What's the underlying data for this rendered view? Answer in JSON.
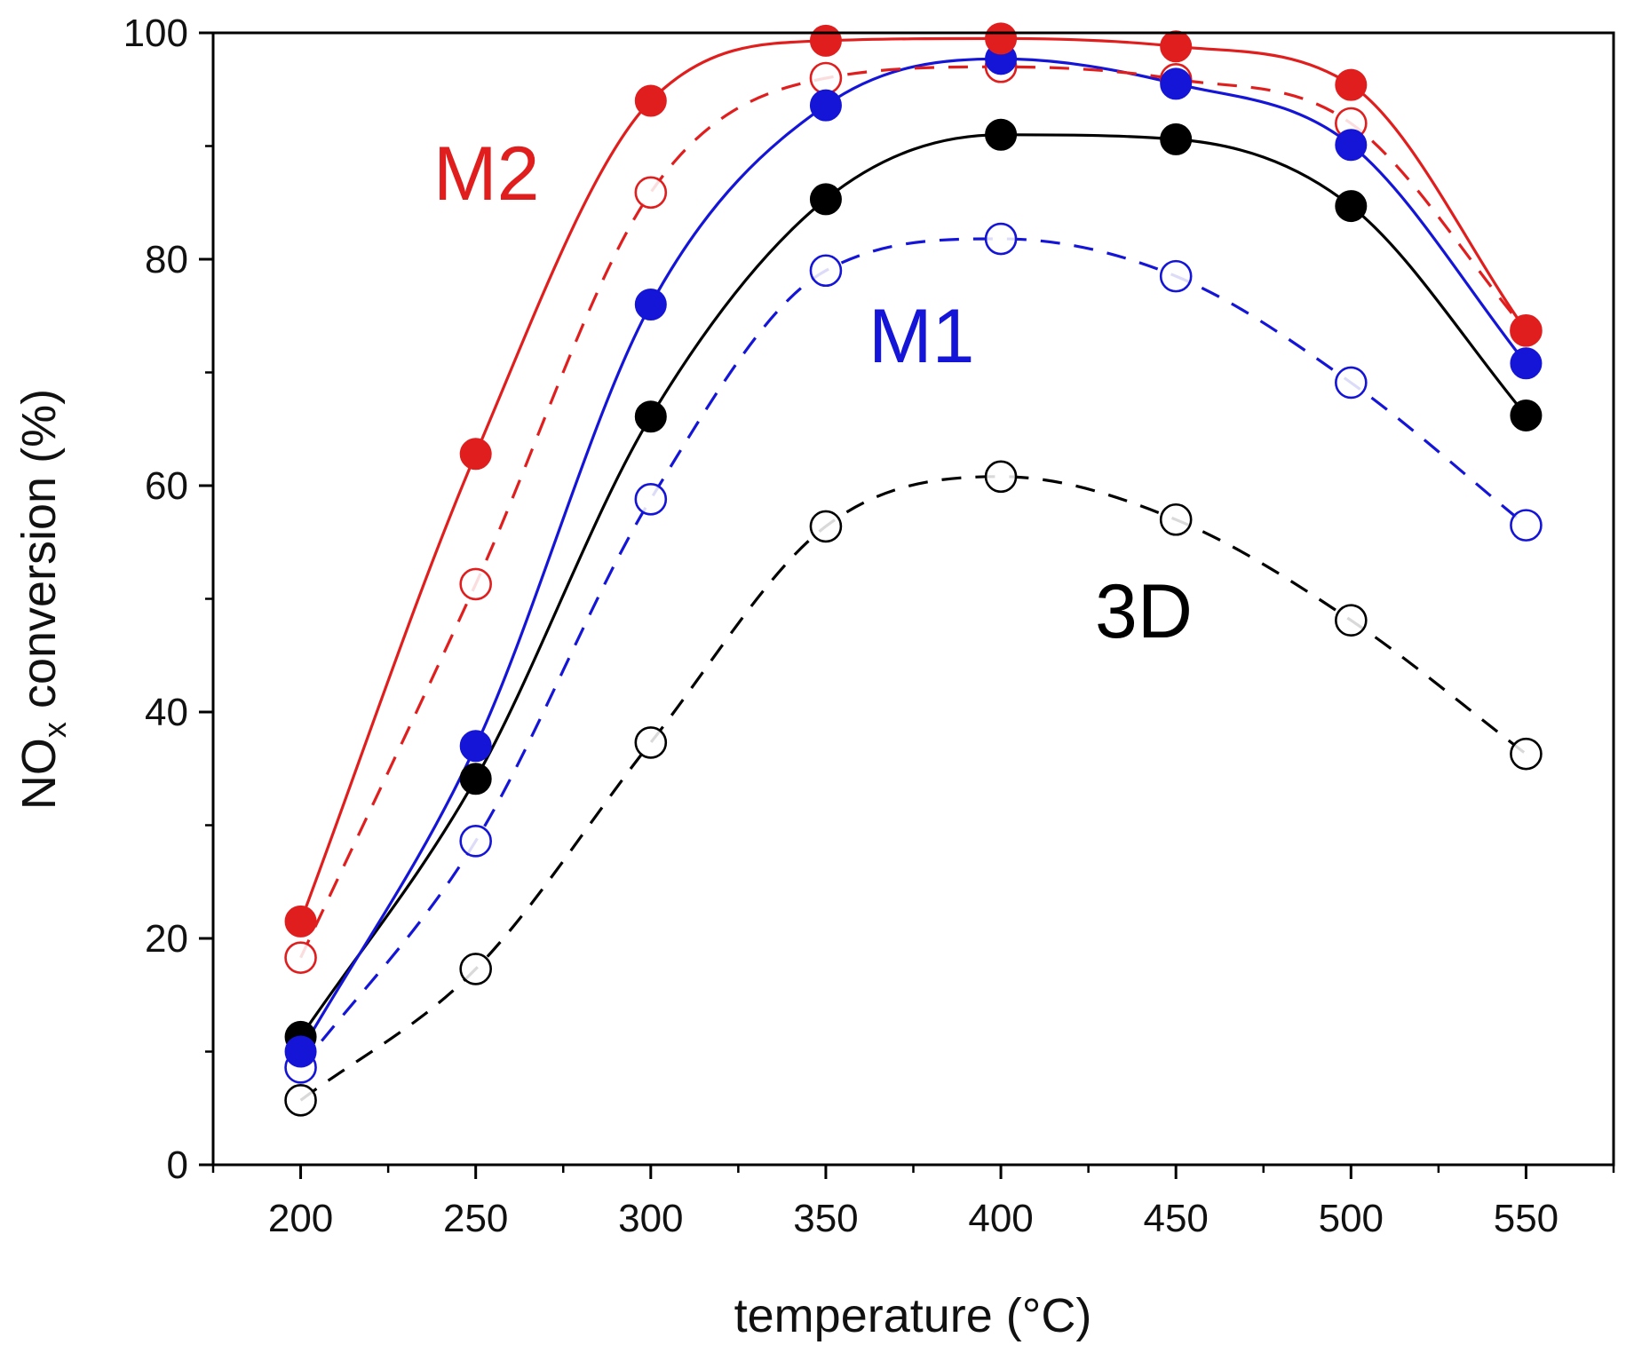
{
  "chart_data": {
    "type": "line",
    "title": "",
    "xlabel": "temperature (°C)",
    "ylabel_main": "NO",
    "ylabel_sub": "x",
    "ylabel_rest": " conversion (%)",
    "xlim": [
      175,
      575
    ],
    "ylim": [
      0,
      100
    ],
    "x": [
      200,
      250,
      300,
      350,
      400,
      450,
      500,
      550
    ],
    "x_ticks": [
      "200",
      "250",
      "300",
      "350",
      "400",
      "450",
      "500",
      "550"
    ],
    "y_ticks": [
      "0",
      "20",
      "40",
      "60",
      "80",
      "100"
    ],
    "series": [
      {
        "name": "M2 filled",
        "group": "M2",
        "color": "#e01e1e",
        "line": "solid",
        "marker": "filled",
        "values": [
          21.5,
          62.8,
          94.0,
          99.3,
          99.5,
          98.8,
          95.4,
          73.7
        ]
      },
      {
        "name": "M2 open",
        "group": "M2",
        "color": "#e01e1e",
        "line": "dashed",
        "marker": "open",
        "values": [
          18.3,
          51.3,
          85.9,
          96.0,
          97.0,
          95.9,
          92.0,
          73.7
        ]
      },
      {
        "name": "M1 filled",
        "group": "M1",
        "color": "#1515d8",
        "line": "solid",
        "marker": "filled",
        "values": [
          10.0,
          37.0,
          76.0,
          93.6,
          97.7,
          95.5,
          90.1,
          70.8
        ]
      },
      {
        "name": "M1 open",
        "group": "M1",
        "color": "#1515d8",
        "line": "dashed",
        "marker": "open",
        "values": [
          8.6,
          28.6,
          58.8,
          79.0,
          81.8,
          78.5,
          69.1,
          56.5
        ]
      },
      {
        "name": "3D filled",
        "group": "3D",
        "color": "#000000",
        "line": "solid",
        "marker": "filled",
        "values": [
          11.3,
          34.1,
          66.1,
          85.3,
          91.0,
          90.6,
          84.7,
          66.2
        ]
      },
      {
        "name": "3D open",
        "group": "3D",
        "color": "#000000",
        "line": "dashed",
        "marker": "open",
        "values": [
          5.7,
          17.3,
          37.3,
          56.4,
          60.8,
          57.0,
          48.1,
          36.3
        ]
      }
    ],
    "annotations": [
      {
        "text": "M2",
        "color": "#e01e1e"
      },
      {
        "text": "M1",
        "color": "#1515d8"
      },
      {
        "text": "3D",
        "color": "#000000"
      }
    ]
  }
}
